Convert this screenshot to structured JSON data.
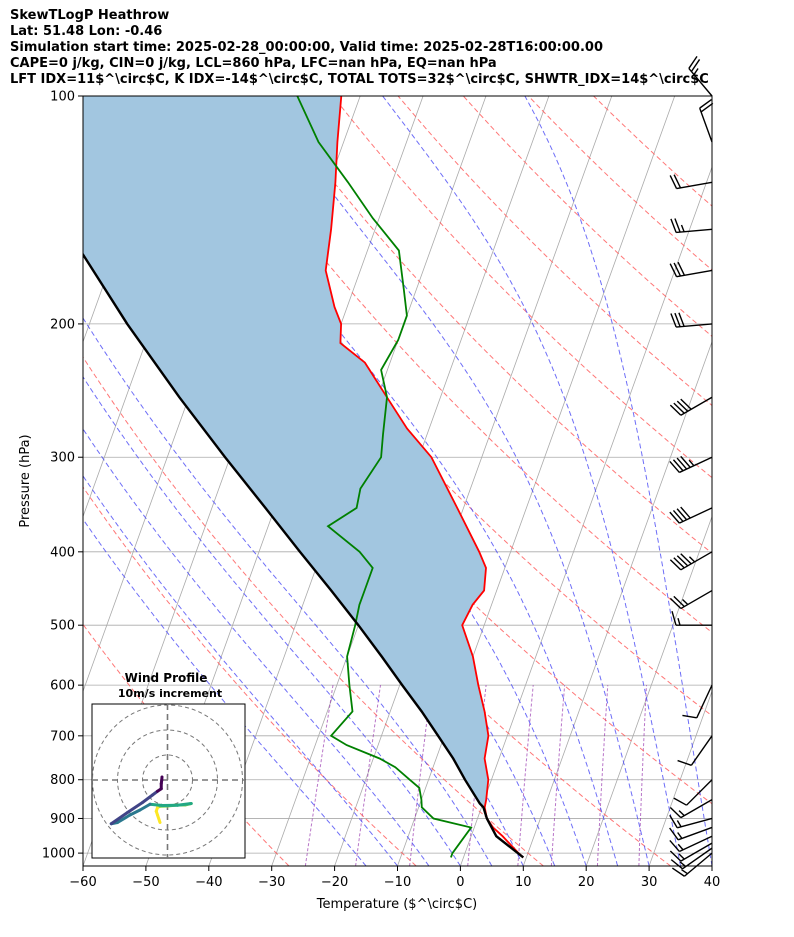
{
  "header": {
    "line1": "SkewTLogP Heathrow",
    "line2": "Lat: 51.48   Lon: -0.46",
    "line3": "Simulation start time: 2025-02-28_00:00:00, Valid time: 2025-02-28T16:00:00.00",
    "line4": "CAPE=0 j/kg, CIN=0 j/kg, LCL=860 hPa, LFC=nan hPa, EQ=nan hPa",
    "line5": "LFT IDX=11$^\\circ$C, K IDX=-14$^\\circ$C, TOTAL TOTS=32$^\\circ$C, SHWTR_IDX=14$^\\circ$C"
  },
  "chart_data": [
    {
      "type": "line",
      "subtype": "skew-t log-p",
      "xlabel": "Temperature ($^\\circ$C)",
      "ylabel": "Pressure (hPa)",
      "xlim": [
        -60,
        40
      ],
      "ylim": [
        1040,
        100
      ],
      "y_scale": "log",
      "grid": true,
      "x_ticks": [
        -60,
        -50,
        -40,
        -30,
        -20,
        -10,
        0,
        10,
        20,
        30,
        40
      ],
      "x_tick_labels": [
        "−60",
        "−50",
        "−40",
        "−30",
        "−20",
        "−10",
        "0",
        "10",
        "20",
        "30",
        "40"
      ],
      "y_ticks": [
        1000,
        900,
        800,
        700,
        600,
        500,
        400,
        300,
        200,
        100
      ],
      "y_tick_labels": [
        "1000",
        "900",
        "800",
        "700",
        "600",
        "500",
        "400",
        "300",
        "200",
        "100"
      ],
      "colors": {
        "temperature": "#ff0000",
        "dewpoint": "#008000",
        "parcel": "#000000",
        "cin_fill": "#a2c6e0",
        "dry_adiabat": "#ff5555",
        "moist_adiabat": "#4a4af5",
        "mixing_ratio": "#9a3ab0",
        "isotherm": "#aaaaaa"
      },
      "series": [
        {
          "role": "temperature",
          "points": [
            [
              1013,
              9.5
            ],
            [
              1000,
              8.5
            ],
            [
              950,
              5.0
            ],
            [
              925,
              3.0
            ],
            [
              900,
              1.5
            ],
            [
              870,
              0.5
            ],
            [
              850,
              0.3
            ],
            [
              800,
              -0.5
            ],
            [
              750,
              -2.3
            ],
            [
              700,
              -3.0
            ],
            [
              650,
              -5.0
            ],
            [
              600,
              -7.5
            ],
            [
              550,
              -10.0
            ],
            [
              500,
              -13.5
            ],
            [
              470,
              -13.0
            ],
            [
              450,
              -12.0
            ],
            [
              420,
              -13.0
            ],
            [
              400,
              -15.0
            ],
            [
              350,
              -21.0
            ],
            [
              300,
              -28.0
            ],
            [
              275,
              -33.5
            ],
            [
              250,
              -38.5
            ],
            [
              225,
              -44.0
            ],
            [
              212,
              -49.0
            ],
            [
              200,
              -50.0
            ],
            [
              190,
              -52.0
            ],
            [
              170,
              -55.5
            ],
            [
              150,
              -57.0
            ],
            [
              130,
              -59.0
            ],
            [
              115,
              -61.0
            ],
            [
              100,
              -63.0
            ]
          ]
        },
        {
          "role": "dewpoint",
          "points": [
            [
              1013,
              -2.0
            ],
            [
              1000,
              -2.0
            ],
            [
              950,
              -1.0
            ],
            [
              925,
              -0.5
            ],
            [
              900,
              -7.0
            ],
            [
              870,
              -9.5
            ],
            [
              850,
              -10.0
            ],
            [
              820,
              -11.0
            ],
            [
              800,
              -13.0
            ],
            [
              770,
              -16.0
            ],
            [
              750,
              -19.0
            ],
            [
              720,
              -25.0
            ],
            [
              700,
              -28.0
            ],
            [
              650,
              -26.0
            ],
            [
              600,
              -28.0
            ],
            [
              550,
              -30.0
            ],
            [
              500,
              -30.5
            ],
            [
              470,
              -31.0
            ],
            [
              450,
              -31.0
            ],
            [
              420,
              -31.0
            ],
            [
              400,
              -34.0
            ],
            [
              370,
              -40.5
            ],
            [
              350,
              -37.0
            ],
            [
              330,
              -37.5
            ],
            [
              300,
              -36.0
            ],
            [
              280,
              -37.0
            ],
            [
              250,
              -38.5
            ],
            [
              230,
              -41.0
            ],
            [
              210,
              -40.0
            ],
            [
              195,
              -40.0
            ],
            [
              180,
              -42.0
            ],
            [
              160,
              -45.0
            ],
            [
              145,
              -51.0
            ],
            [
              130,
              -57.0
            ],
            [
              115,
              -64.0
            ],
            [
              100,
              -70.0
            ]
          ]
        },
        {
          "role": "parcel",
          "points": [
            [
              1013,
              9.5
            ],
            [
              950,
              4.0
            ],
            [
              900,
              1.5
            ],
            [
              870,
              0.3
            ],
            [
              860,
              -0.5
            ],
            [
              800,
              -4.2
            ],
            [
              750,
              -7.3
            ],
            [
              700,
              -11.0
            ],
            [
              650,
              -15.0
            ],
            [
              600,
              -19.6
            ],
            [
              550,
              -24.5
            ],
            [
              500,
              -30.0
            ],
            [
              450,
              -36.3
            ],
            [
              400,
              -43.5
            ],
            [
              350,
              -51.5
            ],
            [
              300,
              -60.8
            ],
            [
              250,
              -71.5
            ],
            [
              200,
              -84.0
            ],
            [
              150,
              -99.0
            ],
            [
              100,
              -118.0
            ]
          ]
        }
      ]
    },
    {
      "type": "line",
      "subtype": "hodograph",
      "title": "Wind Profile",
      "subtitle": "10m/s increment",
      "rings": [
        10,
        20,
        30
      ],
      "series": [
        {
          "role": "hodograph",
          "points": [
            [
              -3,
              -17
            ],
            [
              -4,
              -14
            ],
            [
              -4.5,
              -12.5
            ],
            [
              -4,
              -11
            ],
            [
              -3,
              -10.5
            ],
            [
              0,
              -10.4
            ],
            [
              4,
              -10
            ],
            [
              7,
              -10
            ],
            [
              9.5,
              -9.4
            ],
            [
              4,
              -10.1
            ],
            [
              -2,
              -10.2
            ],
            [
              -7,
              -9.7
            ],
            [
              -11,
              -12
            ],
            [
              -15,
              -14
            ],
            [
              -20,
              -17
            ],
            [
              -22.5,
              -17.5
            ],
            [
              -16,
              -13
            ],
            [
              -10,
              -9
            ],
            [
              -6,
              -6
            ],
            [
              -4,
              -4.5
            ],
            [
              -2.5,
              -3.5
            ],
            [
              -2.5,
              -1.5
            ],
            [
              -2.3,
              0
            ],
            [
              -2.2,
              1.2
            ]
          ],
          "color_ramp": [
            "#fde725",
            "#7ad151",
            "#22a884",
            "#2a788e",
            "#414487",
            "#440154"
          ]
        }
      ]
    }
  ],
  "wind_barbs": [
    {
      "p": 1000,
      "speed_kt": 15,
      "dir_deg": 230
    },
    {
      "p": 985,
      "speed_kt": 15,
      "dir_deg": 235
    },
    {
      "p": 970,
      "speed_kt": 15,
      "dir_deg": 240
    },
    {
      "p": 950,
      "speed_kt": 15,
      "dir_deg": 245
    },
    {
      "p": 925,
      "speed_kt": 15,
      "dir_deg": 250
    },
    {
      "p": 900,
      "speed_kt": 15,
      "dir_deg": 255
    },
    {
      "p": 850,
      "speed_kt": 15,
      "dir_deg": 240
    },
    {
      "p": 800,
      "speed_kt": 10,
      "dir_deg": 225
    },
    {
      "p": 700,
      "speed_kt": 10,
      "dir_deg": 215
    },
    {
      "p": 600,
      "speed_kt": 10,
      "dir_deg": 205
    },
    {
      "p": 500,
      "speed_kt": 15,
      "dir_deg": 270
    },
    {
      "p": 450,
      "speed_kt": 25,
      "dir_deg": 240
    },
    {
      "p": 400,
      "speed_kt": 45,
      "dir_deg": 240
    },
    {
      "p": 350,
      "speed_kt": 40,
      "dir_deg": 245
    },
    {
      "p": 300,
      "speed_kt": 45,
      "dir_deg": 245
    },
    {
      "p": 250,
      "speed_kt": 40,
      "dir_deg": 240
    },
    {
      "p": 200,
      "speed_kt": 30,
      "dir_deg": 265
    },
    {
      "p": 170,
      "speed_kt": 30,
      "dir_deg": 260
    },
    {
      "p": 150,
      "speed_kt": 25,
      "dir_deg": 265
    },
    {
      "p": 130,
      "speed_kt": 20,
      "dir_deg": 260
    },
    {
      "p": 115,
      "speed_kt": 20,
      "dir_deg": 340
    },
    {
      "p": 100,
      "speed_kt": 25,
      "dir_deg": 320
    }
  ]
}
